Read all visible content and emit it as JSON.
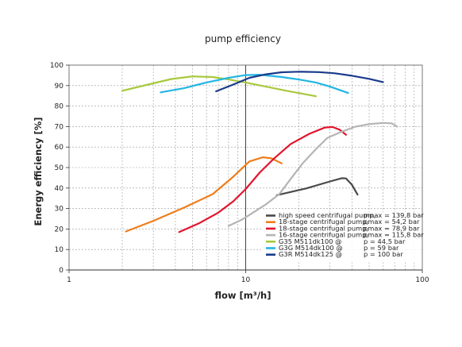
{
  "chart_data": {
    "type": "line",
    "title": "pump efficiency",
    "xlabel": "flow [m³/h]",
    "ylabel": "Energy efficiency [%]",
    "xscale": "log",
    "xlim": [
      1,
      100
    ],
    "ylim": [
      0,
      100
    ],
    "xticks": [
      1,
      10,
      100
    ],
    "xtick_labels": [
      "1",
      "10",
      "100"
    ],
    "yticks": [
      0,
      10,
      20,
      30,
      40,
      50,
      60,
      70,
      80,
      90,
      100
    ],
    "ytick_labels": [
      "0",
      "10",
      "20",
      "30",
      "40",
      "50",
      "60",
      "70",
      "80",
      "90",
      "100"
    ],
    "grid": true,
    "legend_position": "bottom-right",
    "series": [
      {
        "name": "high speed centrifugal pump,",
        "param": "pmax = 139,8 bar",
        "color": "#4a4a4a",
        "points": [
          [
            15,
            36.5
          ],
          [
            22,
            39.8
          ],
          [
            30,
            43.2
          ],
          [
            35,
            44.8
          ],
          [
            37,
            44.7
          ],
          [
            40,
            41.5
          ],
          [
            43,
            36.8
          ]
        ]
      },
      {
        "name": "18-stage centrifugal pump,",
        "param": "pmax = 54,2 bar",
        "color": "#ef7d1a",
        "points": [
          [
            2.1,
            18.8
          ],
          [
            3,
            24
          ],
          [
            4.5,
            30.5
          ],
          [
            6.5,
            37
          ],
          [
            8.5,
            45.5
          ],
          [
            10.5,
            53
          ],
          [
            12.5,
            55
          ],
          [
            14,
            54.5
          ],
          [
            16,
            52
          ]
        ]
      },
      {
        "name": "18-stage centrifugal pump,",
        "param": "pmax = 78,9 bar",
        "color": "#e2142d",
        "points": [
          [
            4.2,
            18.5
          ],
          [
            5.5,
            23
          ],
          [
            7,
            28
          ],
          [
            8.5,
            33.5
          ],
          [
            10,
            39.5
          ],
          [
            12,
            47.5
          ],
          [
            14.5,
            54.5
          ],
          [
            18,
            61.5
          ],
          [
            23,
            66.5
          ],
          [
            28,
            69.5
          ],
          [
            31,
            69.8
          ],
          [
            34,
            68.5
          ],
          [
            37,
            66
          ]
        ]
      },
      {
        "name": "16-stage centrifugal pump,",
        "param": "pmax = 115,8 bar",
        "color": "#b4b4b4",
        "points": [
          [
            8,
            21.5
          ],
          [
            9.5,
            24.5
          ],
          [
            11,
            28
          ],
          [
            13,
            32
          ],
          [
            15.5,
            37
          ],
          [
            18,
            44.5
          ],
          [
            21,
            52
          ],
          [
            25,
            59
          ],
          [
            29,
            64.5
          ],
          [
            35,
            67.5
          ],
          [
            42,
            70
          ],
          [
            50,
            71.2
          ],
          [
            60,
            71.8
          ],
          [
            67,
            71.6
          ],
          [
            72,
            70
          ]
        ]
      },
      {
        "name": "G35 M511dk100 @",
        "param": "p = 44,5 bar",
        "color": "#a8c93c",
        "points": [
          [
            2,
            87.5
          ],
          [
            2.8,
            90.5
          ],
          [
            3.8,
            93.2
          ],
          [
            5,
            94.5
          ],
          [
            6.5,
            94.2
          ],
          [
            8,
            93
          ],
          [
            10,
            91.5
          ],
          [
            13,
            89.5
          ],
          [
            17,
            87.5
          ],
          [
            21,
            86
          ],
          [
            25,
            84.8
          ]
        ]
      },
      {
        "name": "G3G M514dk100 @",
        "param": "p = 59 bar",
        "color": "#23b6e3",
        "points": [
          [
            3.3,
            86.7
          ],
          [
            4.5,
            88.8
          ],
          [
            6,
            91.5
          ],
          [
            8,
            93.8
          ],
          [
            10,
            95.1
          ],
          [
            12,
            95.3
          ],
          [
            16,
            94.2
          ],
          [
            20,
            93
          ],
          [
            25,
            91.5
          ],
          [
            30,
            89.5
          ],
          [
            38,
            86.4
          ]
        ]
      },
      {
        "name": "G3R M514dk125 @",
        "param": "p = 100 bar",
        "color": "#1b3a8a",
        "points": [
          [
            6.8,
            87.2
          ],
          [
            8.5,
            90.5
          ],
          [
            10.5,
            93.8
          ],
          [
            13,
            95.5
          ],
          [
            16,
            96.5
          ],
          [
            20,
            96.8
          ],
          [
            26,
            96.6
          ],
          [
            32,
            96
          ],
          [
            40,
            94.8
          ],
          [
            50,
            93.3
          ],
          [
            60,
            91.7
          ]
        ]
      }
    ]
  }
}
